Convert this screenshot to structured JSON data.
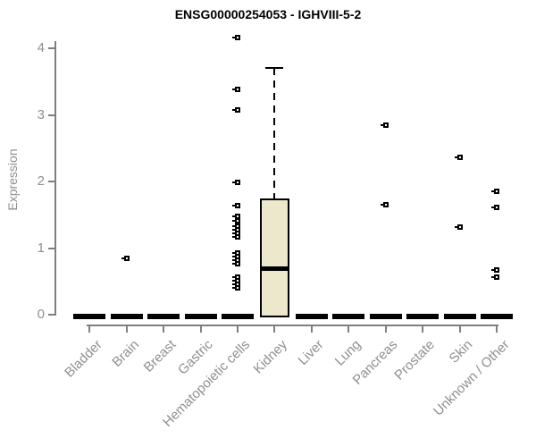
{
  "chart_data": {
    "type": "boxplot",
    "title": "ENSG00000254053 - IGHVIII-5-2",
    "ylabel": "Expression",
    "xlabel": "",
    "ylim": [
      0,
      4
    ],
    "yticks": [
      0,
      1,
      2,
      3,
      4
    ],
    "grid": false,
    "legend": null,
    "categories": [
      "Bladder",
      "Brain",
      "Breast",
      "Gastric",
      "Hematopoietic cells",
      "Kidney",
      "Liver",
      "Lung",
      "Pancreas",
      "Prostate",
      "Skin",
      "Unknown / Other"
    ],
    "boxes": [
      {
        "category": "Bladder",
        "whisker_low": 0,
        "q1": 0,
        "median": 0,
        "q3": 0,
        "whisker_high": 0,
        "outliers": []
      },
      {
        "category": "Brain",
        "whisker_low": 0,
        "q1": 0,
        "median": 0,
        "q3": 0,
        "whisker_high": 0,
        "outliers": [
          0.85
        ]
      },
      {
        "category": "Breast",
        "whisker_low": 0,
        "q1": 0,
        "median": 0,
        "q3": 0,
        "whisker_high": 0,
        "outliers": []
      },
      {
        "category": "Gastric",
        "whisker_low": 0,
        "q1": 0,
        "median": 0,
        "q3": 0,
        "whisker_high": 0,
        "outliers": []
      },
      {
        "category": "Hematopoietic cells",
        "whisker_low": 0,
        "q1": 0,
        "median": 0,
        "q3": 0,
        "whisker_high": 0,
        "outliers": [
          4.16,
          3.38,
          3.07,
          1.99,
          1.64,
          1.48,
          1.41,
          1.33,
          1.28,
          1.22,
          1.17,
          0.93,
          0.87,
          0.82,
          0.77,
          0.56,
          0.51,
          0.46,
          0.4
        ]
      },
      {
        "category": "Kidney",
        "whisker_low": 0,
        "q1": 0,
        "median": 0.7,
        "q3": 1.75,
        "whisker_high": 3.7,
        "outliers": []
      },
      {
        "category": "Liver",
        "whisker_low": 0,
        "q1": 0,
        "median": 0,
        "q3": 0,
        "whisker_high": 0,
        "outliers": []
      },
      {
        "category": "Lung",
        "whisker_low": 0,
        "q1": 0,
        "median": 0,
        "q3": 0,
        "whisker_high": 0,
        "outliers": []
      },
      {
        "category": "Pancreas",
        "whisker_low": 0,
        "q1": 0,
        "median": 0,
        "q3": 0,
        "whisker_high": 0,
        "outliers": [
          2.85,
          1.65
        ]
      },
      {
        "category": "Prostate",
        "whisker_low": 0,
        "q1": 0,
        "median": 0,
        "q3": 0,
        "whisker_high": 0,
        "outliers": []
      },
      {
        "category": "Skin",
        "whisker_low": 0,
        "q1": 0,
        "median": 0,
        "q3": 0,
        "whisker_high": 0,
        "outliers": [
          2.36,
          1.32
        ]
      },
      {
        "category": "Unknown / Other",
        "whisker_low": 0,
        "q1": 0,
        "median": 0,
        "q3": 0,
        "whisker_high": 0,
        "outliers": [
          1.85,
          1.61,
          0.67,
          0.56
        ]
      }
    ],
    "colors": {
      "box_fill": "#ede7cb",
      "box_border": "#000000",
      "marker": "#000000",
      "collapsed_bar": "#000000",
      "axis_line": "#7f7f7f",
      "tick_label": "#8f8f8f",
      "title": "#000000",
      "background": "#ffffff"
    }
  }
}
